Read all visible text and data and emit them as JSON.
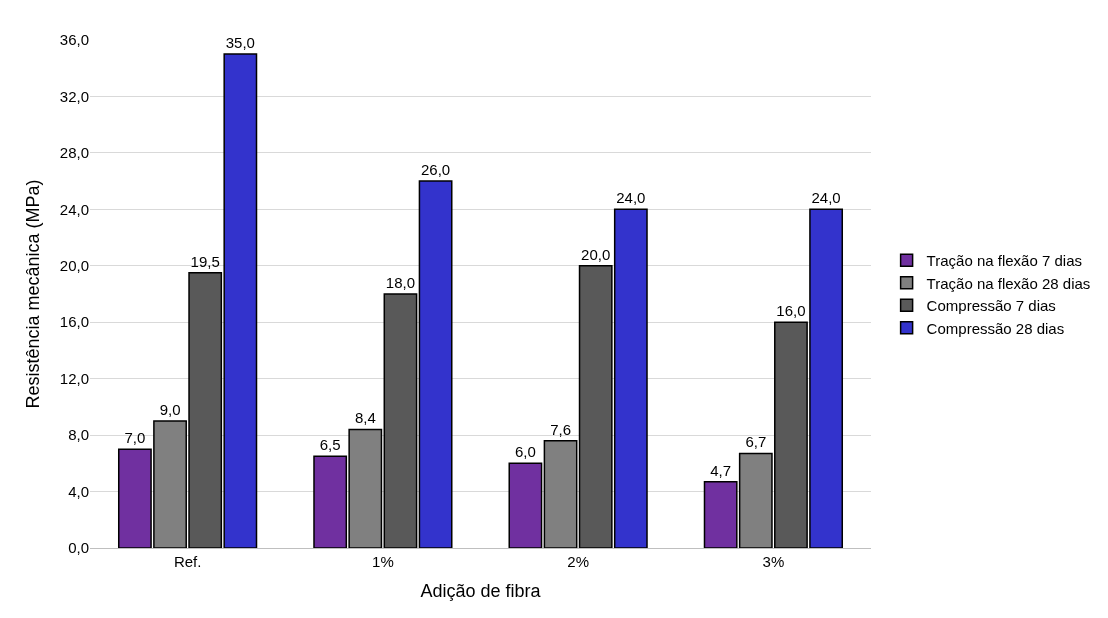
{
  "chart_data": {
    "type": "bar",
    "xlabel": "Adição de fibra",
    "ylabel": "Resistência mecânica (MPa)",
    "categories": [
      "Ref.",
      "1%",
      "2%",
      "3%"
    ],
    "series": [
      {
        "name": "Tração na flexão 7 dias",
        "color": "#7030a0",
        "values": [
          7.0,
          6.5,
          6.0,
          4.7
        ],
        "value_labels": [
          "7,0",
          "6,5",
          "6,0",
          "4,7"
        ]
      },
      {
        "name": "Tração na flexão 28 dias",
        "color": "#808080",
        "values": [
          9.0,
          8.4,
          7.6,
          6.7
        ],
        "value_labels": [
          "9,0",
          "8,4",
          "7,6",
          "6,7"
        ]
      },
      {
        "name": "Compressão 7 dias",
        "color": "#595959",
        "values": [
          19.5,
          18.0,
          20.0,
          16.0
        ],
        "value_labels": [
          "19,5",
          "18,0",
          "20,0",
          "16,0"
        ]
      },
      {
        "name": "Compressão 28 dias",
        "color": "#3333cc",
        "values": [
          35.0,
          26.0,
          24.0,
          24.0
        ],
        "value_labels": [
          "35,0",
          "26,0",
          "24,0",
          "24,0"
        ]
      }
    ],
    "ylim": [
      0,
      36
    ],
    "yticks": [
      {
        "value": 0,
        "label": "0,0"
      },
      {
        "value": 4,
        "label": "4,0"
      },
      {
        "value": 8,
        "label": "8,0"
      },
      {
        "value": 12,
        "label": "12,0"
      },
      {
        "value": 16,
        "label": "16,0"
      },
      {
        "value": 20,
        "label": "20,0"
      },
      {
        "value": 24,
        "label": "24,0"
      },
      {
        "value": 28,
        "label": "28,0"
      },
      {
        "value": 32,
        "label": "32,0"
      },
      {
        "value": 36,
        "label": "36,0"
      }
    ],
    "grid": "y",
    "legend": "right"
  }
}
